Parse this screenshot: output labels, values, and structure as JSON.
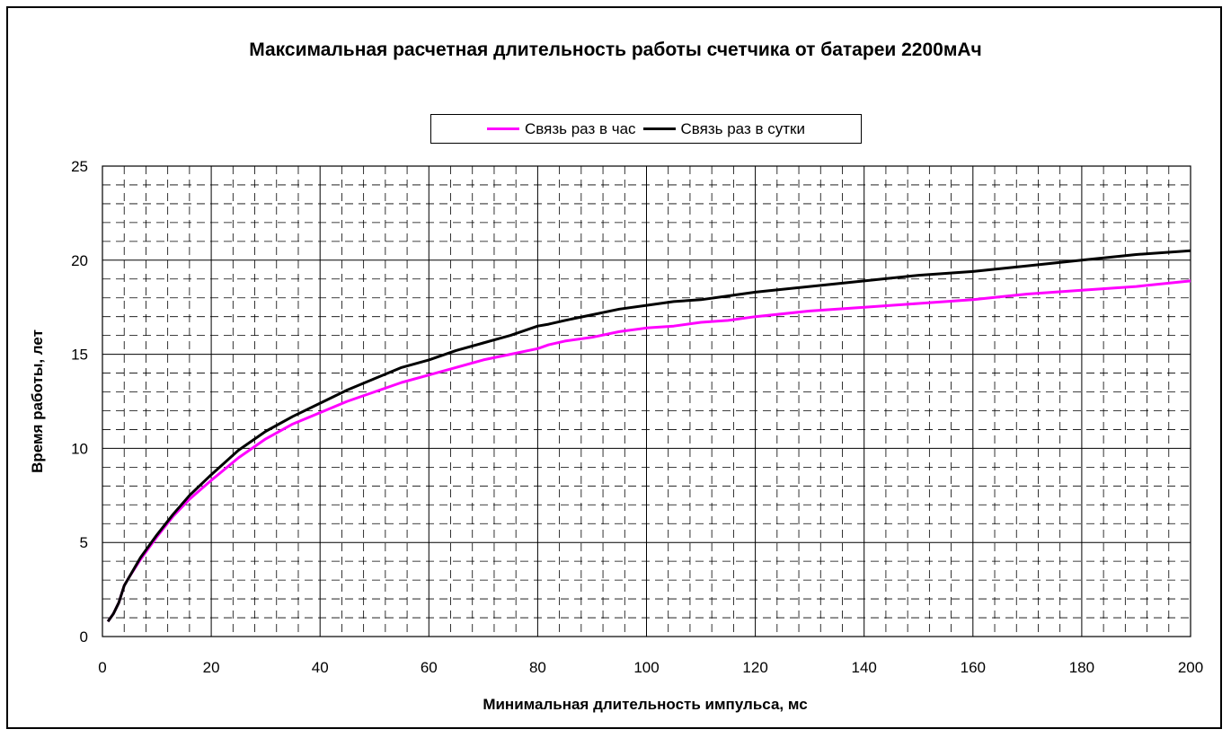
{
  "chart_data": {
    "type": "line",
    "title": "Максимальная расчетная длительность работы счетчика от батареи 2200мАч",
    "xlabel": "Минимальная длительность импульса, мс",
    "ylabel": "Время работы, лет",
    "xlim": [
      0,
      200
    ],
    "ylim": [
      0,
      25
    ],
    "x_ticks": [
      "0",
      "20",
      "40",
      "60",
      "80",
      "100",
      "120",
      "140",
      "160",
      "180",
      "200"
    ],
    "y_ticks": [
      "0",
      "5",
      "10",
      "15",
      "20",
      "25"
    ],
    "grid": "major solid, minor dashed",
    "legend_position": "top",
    "series": [
      {
        "name": "Связь раз в час",
        "color": "#ff00ff",
        "x": [
          1,
          2,
          3,
          4,
          5,
          7,
          10,
          13,
          16,
          20,
          25,
          30,
          35,
          40,
          45,
          50,
          55,
          60,
          65,
          70,
          75,
          80,
          82,
          85,
          90,
          95,
          100,
          105,
          110,
          115,
          120,
          130,
          140,
          150,
          160,
          170,
          180,
          190,
          200
        ],
        "y": [
          0.8,
          1.2,
          1.8,
          2.7,
          3.2,
          4.1,
          5.3,
          6.4,
          7.3,
          8.3,
          9.5,
          10.5,
          11.3,
          11.9,
          12.5,
          13.0,
          13.5,
          13.9,
          14.3,
          14.7,
          15.0,
          15.3,
          15.5,
          15.7,
          15.9,
          16.2,
          16.4,
          16.5,
          16.7,
          16.8,
          17.0,
          17.3,
          17.5,
          17.7,
          17.9,
          18.2,
          18.4,
          18.6,
          18.9
        ]
      },
      {
        "name": "Связь раз в сутки",
        "color": "#000000",
        "x": [
          1,
          2,
          3,
          4,
          5,
          7,
          10,
          13,
          16,
          20,
          25,
          30,
          35,
          40,
          45,
          50,
          55,
          60,
          65,
          70,
          75,
          80,
          82,
          85,
          90,
          95,
          100,
          105,
          110,
          115,
          120,
          130,
          140,
          150,
          160,
          170,
          180,
          190,
          200
        ],
        "y": [
          0.8,
          1.2,
          1.8,
          2.7,
          3.2,
          4.2,
          5.4,
          6.5,
          7.5,
          8.6,
          9.9,
          10.9,
          11.7,
          12.4,
          13.1,
          13.7,
          14.3,
          14.7,
          15.2,
          15.6,
          16.0,
          16.5,
          16.6,
          16.8,
          17.1,
          17.4,
          17.6,
          17.8,
          17.9,
          18.1,
          18.3,
          18.6,
          18.9,
          19.2,
          19.4,
          19.7,
          20.0,
          20.3,
          20.5
        ]
      }
    ]
  }
}
